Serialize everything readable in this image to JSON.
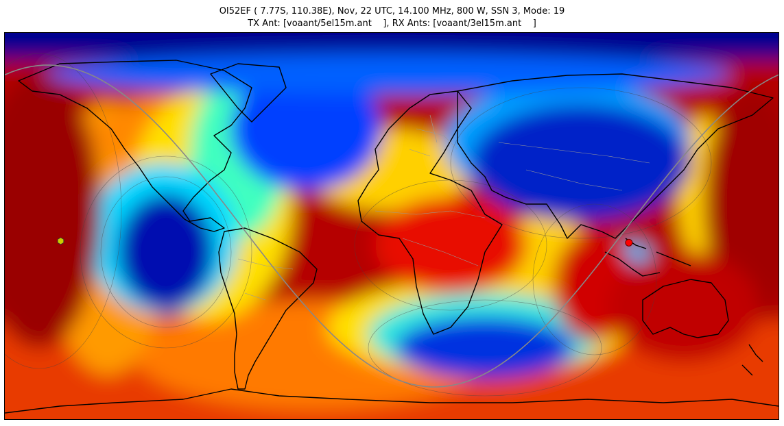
{
  "figure": {
    "title_line1": "OI52EF ( 7.77S, 110.38E), Nov, 22 UTC, 14.100 MHz, 800 W, SSN 3, Mode: 19",
    "title_line2": "TX Ant: [voaant/5el15m.ant    ], RX Ants: [voaant/3el15m.ant    ]"
  },
  "map": {
    "projection": "equirectangular",
    "lon_range": [
      -180,
      180
    ],
    "lat_range": [
      -90,
      90
    ],
    "colormap": "jet",
    "transmitter": {
      "lat": -7.77,
      "lon": 110.38,
      "color": "#ff0000"
    },
    "antipode": {
      "lat": 7.77,
      "lon": -69.62
    },
    "receiver_marker": {
      "lat": -7.0,
      "lon": -154.0,
      "color": "#cccc00"
    },
    "grey_line_color": "#888888"
  }
}
